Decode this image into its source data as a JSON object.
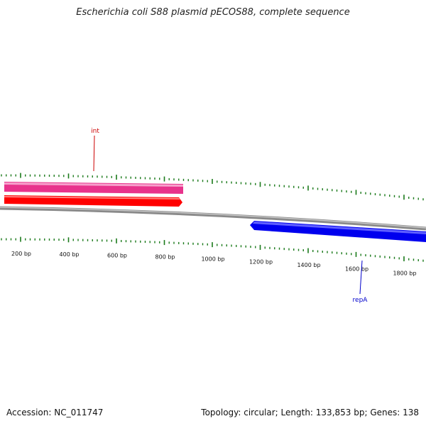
{
  "title": "Escherichia coli S88 plasmid pECOS88, complete sequence",
  "footer": {
    "accession": "Accession: NC_011747",
    "summary": "Topology: circular; Length: 133,853 bp; Genes: 138"
  },
  "colors": {
    "backbone": "#8a8a8a",
    "ticks": "#1a7a1a",
    "int_gene": "#ff0000",
    "int_label": "#cc0000",
    "int_cds": "#e8338c",
    "repA_gene": "#0000ff",
    "repA_label": "#0000cc"
  },
  "ruler": {
    "unit": "bp",
    "labels": [
      "200 bp",
      "400 bp",
      "600 bp",
      "800 bp",
      "1000 bp",
      "1200 bp",
      "1400 bp",
      "1600 bp",
      "1800 bp"
    ]
  },
  "features": [
    {
      "name": "int",
      "strand": "+",
      "start": 0,
      "end": 890,
      "track": "forward"
    },
    {
      "name": "int_cds",
      "strand": "+",
      "start": 0,
      "end": 890,
      "track": "forward-outer"
    },
    {
      "name": "repA",
      "strand": "-",
      "start": 1190,
      "end": 1890,
      "track": "reverse"
    }
  ]
}
